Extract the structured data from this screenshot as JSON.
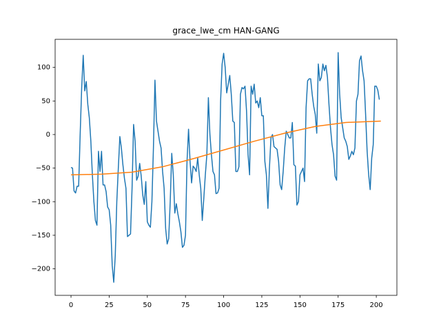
{
  "chart_data": {
    "type": "line",
    "title": "grace_lwe_cm HAN-GANG",
    "xlim": [
      -10.4,
      213.5
    ],
    "ylim": [
      -239.5,
      141.8
    ],
    "xticks": [
      0,
      25,
      50,
      75,
      100,
      125,
      150,
      175,
      200
    ],
    "yticks": [
      {
        "value": -200,
        "label": "−200"
      },
      {
        "value": -150,
        "label": "−150"
      },
      {
        "value": -100,
        "label": "−100"
      },
      {
        "value": -50,
        "label": "−50"
      },
      0,
      50,
      100
    ],
    "grid": false,
    "series": [
      {
        "color": "#1f77b4",
        "x": [
          0,
          1,
          2,
          3,
          4,
          5,
          6,
          7,
          8,
          9,
          10,
          11,
          12,
          13,
          14,
          15,
          16,
          17,
          18,
          19,
          20,
          21,
          22,
          23,
          24,
          25,
          26,
          27,
          28,
          29,
          30,
          31,
          32,
          33,
          34,
          35,
          36,
          37,
          38,
          39,
          40,
          41,
          42,
          43,
          44,
          45,
          46,
          47,
          48,
          49,
          50,
          51,
          52,
          53,
          54,
          55,
          56,
          57,
          58,
          59,
          60,
          61,
          62,
          63,
          64,
          65,
          66,
          67,
          68,
          69,
          70,
          71,
          72,
          73,
          74,
          75,
          76,
          77,
          78,
          79,
          80,
          81,
          82,
          83,
          84,
          85,
          86,
          87,
          88,
          89,
          90,
          91,
          92,
          93,
          94,
          95,
          96,
          97,
          98,
          99,
          100,
          101,
          102,
          103,
          104,
          105,
          106,
          107,
          108,
          109,
          110,
          111,
          112,
          113,
          114,
          115,
          116,
          117,
          118,
          119,
          120,
          121,
          122,
          123,
          124,
          125,
          126,
          127,
          128,
          129,
          130,
          131,
          132,
          133,
          134,
          135,
          136,
          137,
          138,
          139,
          140,
          141,
          142,
          143,
          144,
          145,
          146,
          147,
          148,
          149,
          150,
          151,
          152,
          153,
          154,
          155,
          156,
          157,
          158,
          159,
          160,
          161,
          162,
          163,
          164,
          165,
          166,
          167,
          168,
          169,
          170,
          171,
          172,
          173,
          174,
          175,
          176,
          177,
          178,
          179,
          180,
          181,
          182,
          183,
          184,
          185,
          186,
          187,
          188,
          189,
          190,
          191,
          192,
          193,
          194,
          195,
          196,
          197,
          198,
          199,
          200,
          201,
          202
        ],
        "values": [
          -49,
          -50,
          -84,
          -87,
          -77,
          -77,
          0,
          70,
          118,
          65,
          79,
          45,
          25,
          -10,
          -60,
          -100,
          -128,
          -135,
          -25,
          -55,
          -25,
          -75,
          -75,
          -85,
          -108,
          -112,
          -135,
          -195,
          -220,
          -180,
          -100,
          -50,
          -3,
          -20,
          -45,
          -65,
          -80,
          -152,
          -150,
          -148,
          -80,
          15,
          -10,
          -68,
          -62,
          -43,
          -62,
          -90,
          -104,
          -70,
          -130,
          -135,
          -138,
          -100,
          -20,
          81,
          20,
          5,
          -10,
          -20,
          -55,
          -80,
          -140,
          -163,
          -155,
          -100,
          -28,
          -60,
          -117,
          -103,
          -118,
          -130,
          -145,
          -168,
          -165,
          -150,
          -40,
          8,
          -40,
          -72,
          -47,
          -50,
          -55,
          -35,
          -60,
          -80,
          -128,
          -95,
          -60,
          -30,
          55,
          0,
          -30,
          -55,
          -60,
          -88,
          -87,
          -80,
          50,
          105,
          121,
          100,
          62,
          75,
          88,
          60,
          20,
          18,
          -55,
          -55,
          -48,
          60,
          70,
          68,
          72,
          35,
          -30,
          -60,
          72,
          60,
          75,
          47,
          50,
          40,
          55,
          28,
          28,
          -40,
          -60,
          -110,
          -50,
          -5,
          0,
          -18,
          -20,
          -22,
          -40,
          -75,
          -82,
          -55,
          -20,
          5,
          0,
          -5,
          -5,
          18,
          -45,
          -47,
          -105,
          -100,
          -60,
          -55,
          -50,
          -70,
          40,
          80,
          83,
          83,
          60,
          42,
          30,
          2,
          105,
          80,
          85,
          105,
          95,
          103,
          85,
          45,
          10,
          -15,
          -30,
          -62,
          -68,
          122,
          60,
          25,
          10,
          -5,
          -10,
          -18,
          -37,
          -32,
          -25,
          -30,
          -20,
          50,
          60,
          110,
          117,
          95,
          80,
          30,
          -25,
          -60,
          -82,
          -35,
          -15,
          72,
          72,
          66,
          52
        ]
      },
      {
        "color": "#ff7f0e",
        "x": [
          0,
          20,
          40,
          60,
          80,
          100,
          120,
          140,
          160,
          180,
          203
        ],
        "values": [
          -60,
          -59,
          -56,
          -48,
          -36,
          -23,
          -10,
          2,
          12,
          18,
          20
        ]
      }
    ]
  }
}
